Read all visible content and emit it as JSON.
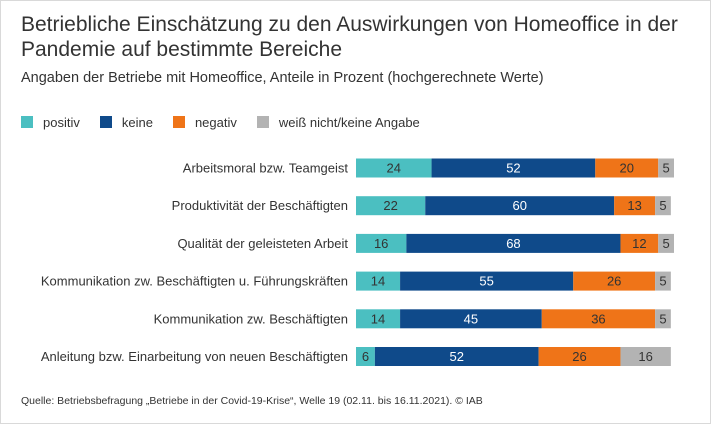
{
  "title": "Betriebliche Einschätzung zu den Auswirkungen von Homeoffice in der Pandemie auf bestimmte Bereiche",
  "subtitle": "Angaben der Betriebe mit Homeoffice, Anteile in Prozent (hochgerechnete Werte)",
  "source": "Quelle: Betriebsbefragung „Betriebe in der Covid-19-Krise“, Welle 19 (02.11. bis 16.11.2021). © IAB",
  "legend_items": [
    {
      "label": "positiv",
      "color": "#4bbfc1"
    },
    {
      "label": "keine",
      "color": "#0f4a8a"
    },
    {
      "label": "negativ",
      "color": "#ef7418"
    },
    {
      "label": "weiß nicht/keine Angabe",
      "color": "#b3b3b3"
    }
  ],
  "chart_data": {
    "type": "bar",
    "orientation": "horizontal",
    "stacked": true,
    "categories": [
      "Arbeitsmoral bzw. Teamgeist",
      "Produktivität der Beschäftigten",
      "Qualität der geleisteten Arbeit",
      "Kommunikation zw. Beschäftigten u. Führungskräften",
      "Kommunikation zw. Beschäftigten",
      "Anleitung bzw. Einarbeitung von neuen Beschäftigten"
    ],
    "series": [
      {
        "name": "positiv",
        "color": "#4bbfc1",
        "label_color": "#333333",
        "values": [
          24,
          22,
          16,
          14,
          14,
          6
        ]
      },
      {
        "name": "keine",
        "color": "#0f4a8a",
        "label_color": "#ffffff",
        "values": [
          52,
          60,
          68,
          55,
          45,
          52
        ]
      },
      {
        "name": "negativ",
        "color": "#ef7418",
        "label_color": "#333333",
        "values": [
          20,
          13,
          12,
          26,
          36,
          26
        ]
      },
      {
        "name": "weiß nicht/keine Angabe",
        "color": "#b3b3b3",
        "label_color": "#333333",
        "values": [
          5,
          5,
          5,
          5,
          5,
          16
        ]
      }
    ],
    "xlim": [
      0,
      101
    ],
    "grid": false,
    "legend_position": "top-left",
    "data_labels": true
  }
}
